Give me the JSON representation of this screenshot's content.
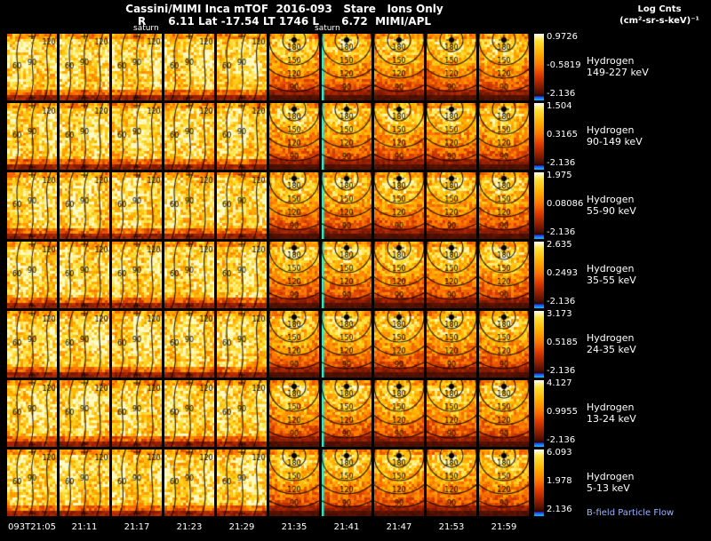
{
  "header": {
    "title": "Cassini/MIMI Inca mTOF  2016-093   Stare   Ions Only",
    "subtitle": "R      6.11 Lat -17.54 LT 1746 L      6.72  MIMI/APL",
    "legend_line1": "Log Cnts",
    "legend_line2": "(cm²-sr-s-keV)⁻¹",
    "saturn_label_left": "saturn",
    "saturn_label_right": "saturn"
  },
  "rows": [
    {
      "label_line1": "Hydrogen",
      "label_line2": "149-227 keV",
      "cb_max": "0.9726",
      "cb_mid": "-0.5819",
      "cb_min": "-2.136"
    },
    {
      "label_line1": "Hydrogen",
      "label_line2": "90-149 keV",
      "cb_max": "1.504",
      "cb_mid": "0.3165",
      "cb_min": "-2.136"
    },
    {
      "label_line1": "Hydrogen",
      "label_line2": "55-90 keV",
      "cb_max": "1.975",
      "cb_mid": "0.08086",
      "cb_min": "-2.136"
    },
    {
      "label_line1": "Hydrogen",
      "label_line2": "35-55 keV",
      "cb_max": "2.635",
      "cb_mid": "0.2493",
      "cb_min": "-2.136"
    },
    {
      "label_line1": "Hydrogen",
      "label_line2": "24-35 keV",
      "cb_max": "3.173",
      "cb_mid": "0.5185",
      "cb_min": "-2.136"
    },
    {
      "label_line1": "Hydrogen",
      "label_line2": "13-24 keV",
      "cb_max": "4.127",
      "cb_mid": "0.9955",
      "cb_min": "-2.136"
    },
    {
      "label_line1": "Hydrogen",
      "label_line2": "5-13 keV",
      "cb_max": "6.093",
      "cb_mid": "1.978",
      "cb_min": "2.136"
    }
  ],
  "bfield_note": "B-field Particle Flow",
  "time_axis": [
    "093T21:05",
    "21:11",
    "21:17",
    "21:23",
    "21:29",
    "21:35",
    "21:41",
    "21:47",
    "21:53",
    "21:59"
  ],
  "contours": {
    "left_labels": [
      "60",
      "90",
      "120"
    ],
    "right_labels": [
      "180",
      "150",
      "120",
      "90"
    ]
  },
  "colors": {
    "background": "#000000",
    "text": "#ffffff",
    "bfield_text": "#9db4ff",
    "gap_stripe": "#2fe8c8",
    "colorbar_stops": [
      "#ffffff",
      "#ffe23a",
      "#ffb400",
      "#ff7a00",
      "#e03a00",
      "#992000",
      "#551000",
      "#2a0800",
      "#2244ff",
      "#00c8ff"
    ],
    "heatmap_stops": [
      "#1a0400",
      "#501000",
      "#961e00",
      "#d63e00",
      "#ff7a00",
      "#ffb400",
      "#ffe23a",
      "#fffac8"
    ]
  },
  "grid": {
    "cols": 10,
    "rows": 7
  },
  "chart_data": {
    "type": "heatmap",
    "title": "Cassini/MIMI Inca mTOF 2016-093 Stare Ions Only",
    "subtitle": "R 6.11 Lat -17.54 LT 1746 L 6.72 MIMI/APL",
    "colorbar_label": "Log Cnts (cm²-sr-s-keV)⁻¹",
    "x_ticks": [
      "093T21:05",
      "21:11",
      "21:17",
      "21:23",
      "21:29",
      "21:35",
      "21:41",
      "21:47",
      "21:53",
      "21:59"
    ],
    "panels_per_row": 10,
    "series": [
      {
        "name": "Hydrogen 149-227 keV",
        "scale": {
          "max": 0.9726,
          "mid": -0.5819,
          "min": -2.136
        }
      },
      {
        "name": "Hydrogen 90-149 keV",
        "scale": {
          "max": 1.504,
          "mid": 0.3165,
          "min": -2.136
        }
      },
      {
        "name": "Hydrogen 55-90 keV",
        "scale": {
          "max": 1.975,
          "mid": 0.08086,
          "min": -2.136
        }
      },
      {
        "name": "Hydrogen 35-55 keV",
        "scale": {
          "max": 2.635,
          "mid": 0.2493,
          "min": -2.136
        }
      },
      {
        "name": "Hydrogen 24-35 keV",
        "scale": {
          "max": 3.173,
          "mid": 0.5185,
          "min": -2.136
        }
      },
      {
        "name": "Hydrogen 13-24 keV",
        "scale": {
          "max": 4.127,
          "mid": 0.9955,
          "min": -2.136
        }
      },
      {
        "name": "Hydrogen 5-13 keV",
        "scale": {
          "max": 6.093,
          "mid": 1.978,
          "min": 2.136
        }
      }
    ],
    "pitch_angle_contours_deg": [
      60,
      90,
      120,
      150,
      180
    ],
    "annotations": [
      "saturn",
      "saturn",
      "B-field Particle Flow"
    ]
  }
}
